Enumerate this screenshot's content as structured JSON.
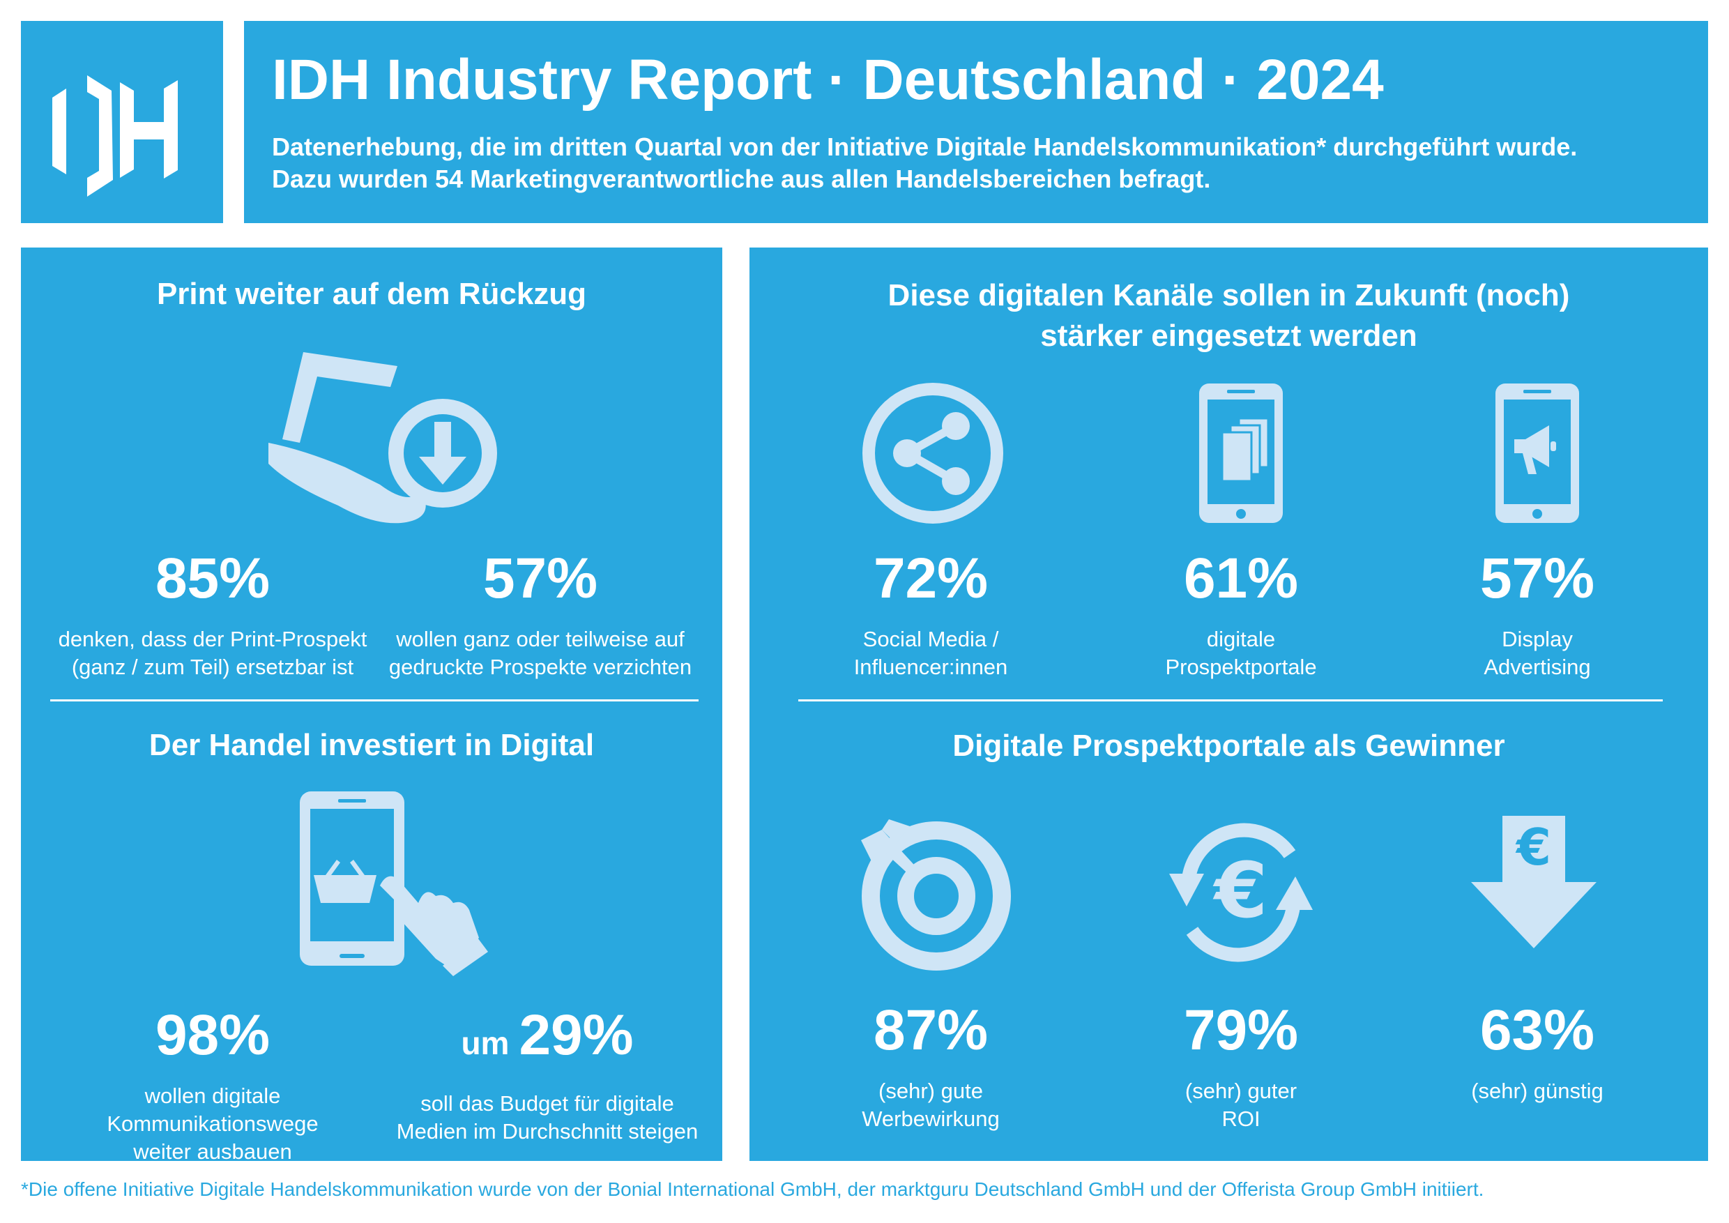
{
  "header": {
    "logo_text": "IDH",
    "title": "IDH Industry Report · Deutschland · 2024",
    "subtitle_lines": [
      "Datenerhebung, die im dritten Quartal von der Initiative Digitale Handelskommunikation* durchgeführt wurde.",
      "Dazu wurden 54 Marketingverantwortliche aus allen Handelsbereichen befragt."
    ]
  },
  "left": {
    "print": {
      "title": "Print weiter auf dem Rückzug",
      "icon": "print-download-icon",
      "stats": [
        {
          "value": "85%",
          "lines": [
            "denken, dass der Print-Prospekt",
            "(ganz / zum Teil) ersetzbar ist"
          ]
        },
        {
          "value": "57%",
          "lines": [
            "wollen ganz oder teilweise auf",
            "gedruckte Prospekte verzichten"
          ]
        }
      ]
    },
    "digital": {
      "title": "Der Handel investiert in Digital",
      "icon": "smartphone-shopping-icon",
      "stats": [
        {
          "prefix": "",
          "value": "98%",
          "lines": [
            "wollen digitale",
            "Kommunikationswege",
            "weiter ausbauen"
          ]
        },
        {
          "prefix": "um",
          "value": "29%",
          "lines": [
            "soll das Budget für digitale",
            "Medien im Durchschnitt steigen"
          ]
        }
      ]
    }
  },
  "right": {
    "channels": {
      "title_lines": [
        "Diese digitalen Kanäle sollen in Zukunft (noch)",
        "stärker eingesetzt werden"
      ],
      "items": [
        {
          "icon": "share-icon",
          "value": "72%",
          "lines": [
            "Social Media /",
            "Influencer:innen"
          ]
        },
        {
          "icon": "smartphone-brochure-icon",
          "value": "61%",
          "lines": [
            "digitale",
            "Prospektportale"
          ]
        },
        {
          "icon": "smartphone-megaphone-icon",
          "value": "57%",
          "lines": [
            "Display",
            "Advertising"
          ]
        }
      ]
    },
    "winners": {
      "title": "Digitale Prospektportale als Gewinner",
      "items": [
        {
          "icon": "target-icon",
          "value": "87%",
          "lines": [
            "(sehr) gute",
            "Werbewirkung"
          ]
        },
        {
          "icon": "euro-cycle-icon",
          "value": "79%",
          "lines": [
            "(sehr) guter",
            "ROI"
          ]
        },
        {
          "icon": "euro-arrow-down-icon",
          "value": "63%",
          "lines": [
            "(sehr) günstig"
          ]
        }
      ]
    }
  },
  "footnote": "*Die offene Initiative Digitale Handelskommunikation wurde von der Bonial International GmbH, der marktguru Deutschland GmbH und der Offerista Group GmbH initiiert.",
  "colors": {
    "panel": "#29a8df",
    "icon": "#cfe5f6",
    "text": "#ffffff"
  }
}
